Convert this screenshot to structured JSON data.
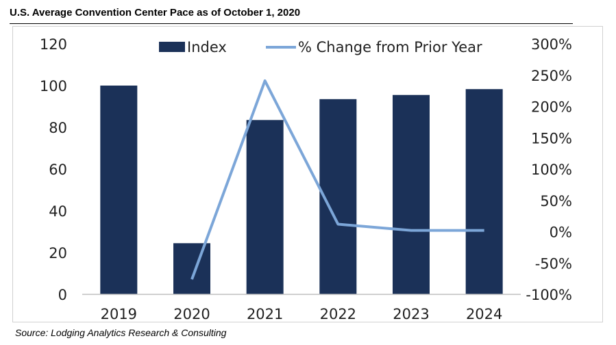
{
  "title": "U.S. Average Convention Center Pace as of October 1, 2020",
  "source": "Source:  Lodging Analytics Research & Consulting",
  "colors": {
    "bar": "#1b3158",
    "line": "#7ca6d8",
    "axis": "#bfbfbf"
  },
  "chart_data": {
    "type": "bar+line",
    "categories": [
      "2019",
      "2020",
      "2021",
      "2022",
      "2023",
      "2024"
    ],
    "series": [
      {
        "name": "Index",
        "type": "bar",
        "axis": "left",
        "values": [
          100,
          24.5,
          83.5,
          93.5,
          95.5,
          98.3
        ]
      },
      {
        "name": "% Change from Prior Year",
        "type": "line",
        "axis": "right",
        "values": [
          null,
          -76,
          241,
          12,
          2,
          2
        ]
      }
    ],
    "y_left": {
      "min": 0,
      "max": 120,
      "ticks": [
        "0",
        "20",
        "40",
        "60",
        "80",
        "100",
        "120"
      ]
    },
    "y_right": {
      "min": -100,
      "max": 300,
      "ticks": [
        "-100%",
        "-50%",
        "0%",
        "50%",
        "100%",
        "150%",
        "200%",
        "250%",
        "300%"
      ]
    },
    "legend_position": "top",
    "grid": false
  }
}
